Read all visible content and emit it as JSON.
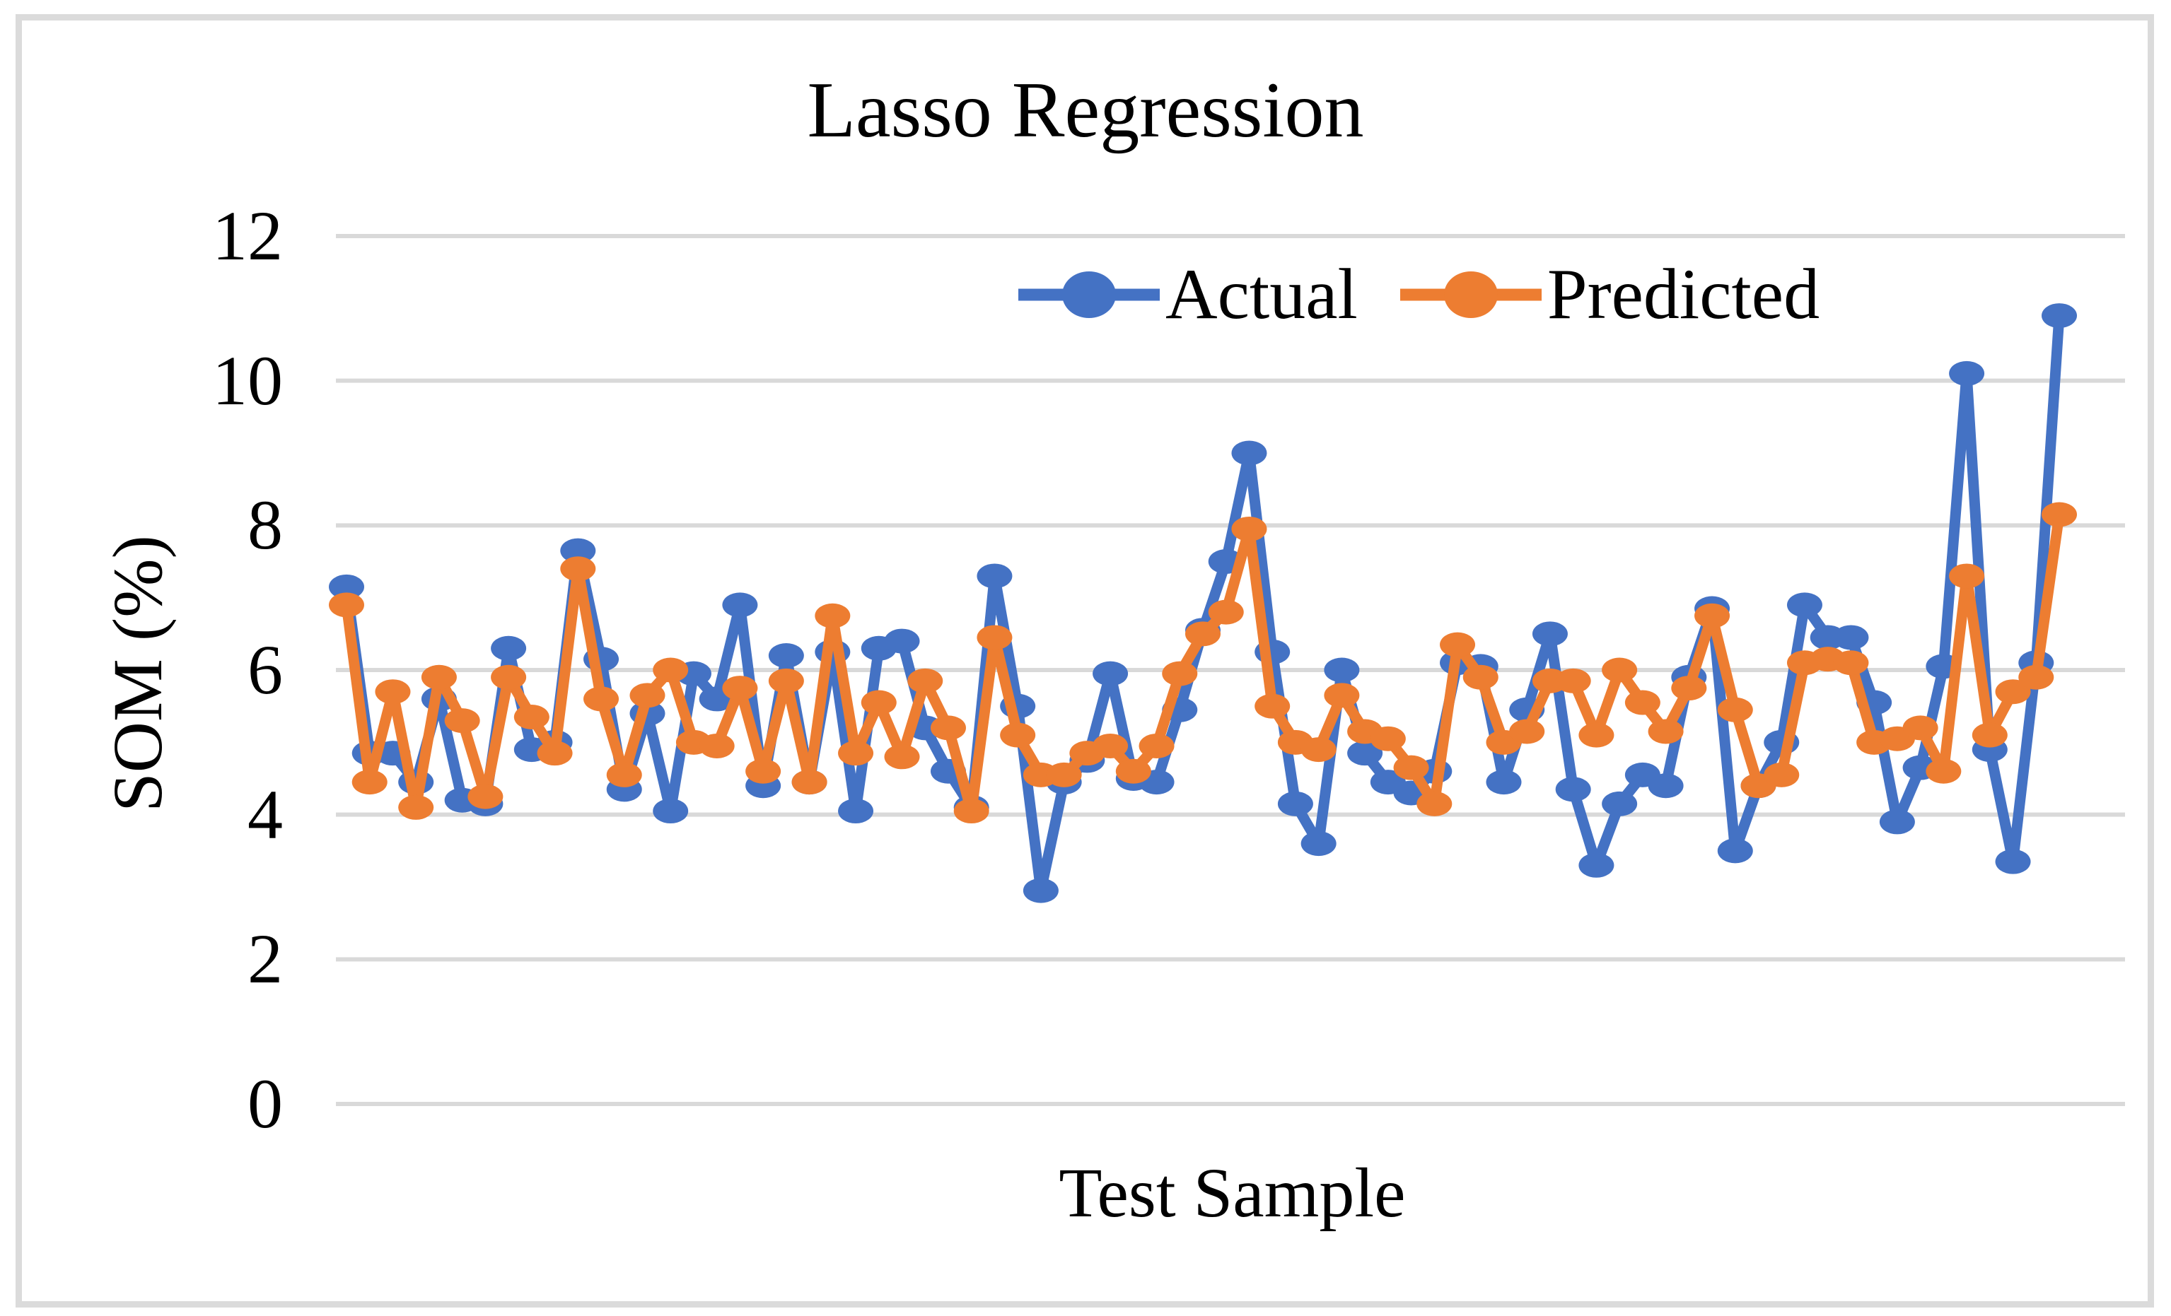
{
  "figure": {
    "background": "#ffffff",
    "border_color": "#dbdbdb"
  },
  "chart_data": {
    "type": "line",
    "title": "Lasso Regression",
    "xlabel": "Test Sample",
    "ylabel": "SOM (%)",
    "ylim": [
      0,
      12
    ],
    "yticks": [
      0,
      2,
      4,
      6,
      8,
      10,
      12
    ],
    "x_tick_labels_visible": false,
    "grid": true,
    "gridline_color": "#d9d9d9",
    "legend_position": "top-center-inside",
    "n_points": 75,
    "series": [
      {
        "name": "Actual",
        "color": "#4472C4",
        "values": [
          7.15,
          4.85,
          4.85,
          4.45,
          5.6,
          4.2,
          4.15,
          6.3,
          4.9,
          5.0,
          7.65,
          6.15,
          4.35,
          5.4,
          4.05,
          5.95,
          5.6,
          6.9,
          4.4,
          6.2,
          4.45,
          6.25,
          4.05,
          6.3,
          6.4,
          5.2,
          4.6,
          4.1,
          7.3,
          5.5,
          2.95,
          4.45,
          4.75,
          5.95,
          4.5,
          4.45,
          5.45,
          6.55,
          7.5,
          9.0,
          6.25,
          4.15,
          3.6,
          6.0,
          4.85,
          4.45,
          4.3,
          4.6,
          6.1,
          6.05,
          4.45,
          5.45,
          6.5,
          4.35,
          3.3,
          4.15,
          4.55,
          4.4,
          5.9,
          6.85,
          3.5,
          4.4,
          5.0,
          6.9,
          6.45,
          6.45,
          5.55,
          3.9,
          4.65,
          6.05,
          10.1,
          4.9,
          3.35,
          6.1,
          10.9
        ]
      },
      {
        "name": "Predicted",
        "color": "#ED7D31",
        "values": [
          6.9,
          4.45,
          5.7,
          4.1,
          5.9,
          5.3,
          4.25,
          5.9,
          5.35,
          4.85,
          7.4,
          5.6,
          4.55,
          5.65,
          6.0,
          5.0,
          4.95,
          5.75,
          4.6,
          5.85,
          4.45,
          6.75,
          4.85,
          5.55,
          4.8,
          5.85,
          5.2,
          4.05,
          6.45,
          5.1,
          4.55,
          4.55,
          4.85,
          4.95,
          4.6,
          4.95,
          5.95,
          6.5,
          6.8,
          7.95,
          5.5,
          5.0,
          4.9,
          5.65,
          5.15,
          5.05,
          4.65,
          4.15,
          6.35,
          5.9,
          5.0,
          5.15,
          5.85,
          5.85,
          5.1,
          6.0,
          5.55,
          5.15,
          5.75,
          6.75,
          5.45,
          4.4,
          4.55,
          6.1,
          6.15,
          6.1,
          5.0,
          5.05,
          5.2,
          4.6,
          7.3,
          5.1,
          5.7,
          5.9,
          8.15
        ]
      }
    ]
  }
}
